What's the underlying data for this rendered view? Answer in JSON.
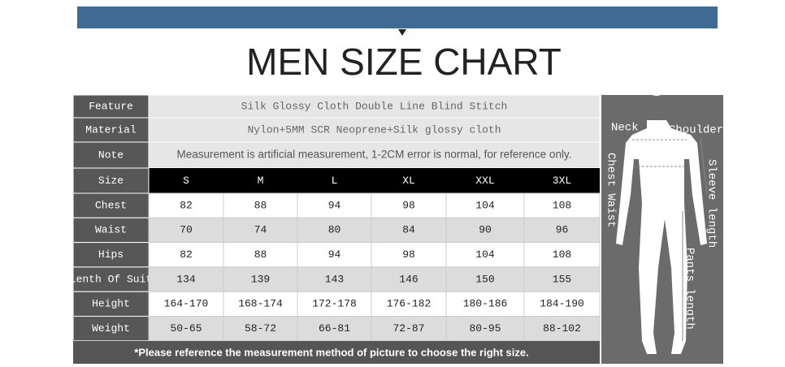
{
  "title": "MEN SIZE CHART",
  "info": [
    {
      "label": "Feature",
      "value": "Silk Glossy Cloth Double Line Blind Stitch"
    },
    {
      "label": "Material",
      "value": "Nylon+5MM SCR Neoprene+Silk glossy cloth"
    },
    {
      "label": "Note",
      "value": "Measurement is artificial measurement, 1-2CM error is normal, for reference only."
    }
  ],
  "table": {
    "header": [
      "Size",
      "S",
      "M",
      "L",
      "XL",
      "XXL",
      "3XL"
    ],
    "rows": [
      [
        "Chest",
        82,
        88,
        94,
        98,
        104,
        108
      ],
      [
        "Waist",
        70,
        74,
        80,
        84,
        90,
        96
      ],
      [
        "Hips",
        82,
        88,
        94,
        98,
        104,
        108
      ],
      [
        "Lenth Of Suit",
        134,
        139,
        143,
        146,
        150,
        155
      ],
      [
        "Height",
        "164-170",
        "168-174",
        "172-178",
        "176-182",
        "180-186",
        "184-190"
      ],
      [
        "Weight",
        "50-65",
        "58-72",
        "66-81",
        "72-87",
        "80-95",
        "88-102"
      ]
    ]
  },
  "footer": "*Please reference the measurement method of picture to choose the right size.",
  "figure": {
    "neck": "Neck",
    "shoulder": "Shoulder",
    "chest_waist": "Chest Waist",
    "sleeve": "Sleeve length",
    "pants": "Pants length"
  }
}
